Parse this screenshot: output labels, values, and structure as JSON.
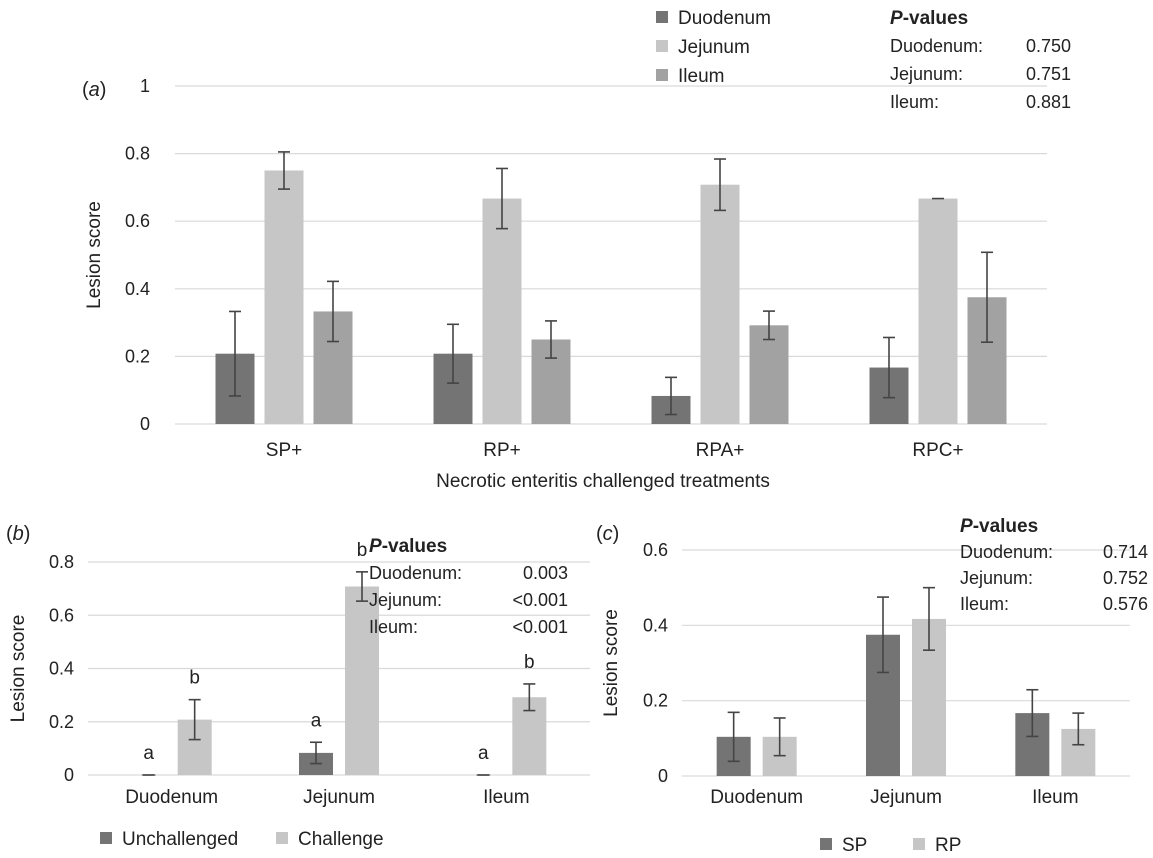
{
  "colors": {
    "dark": "#747474",
    "light": "#c6c6c6",
    "mid": "#a2a2a2"
  },
  "chart_data": [
    {
      "panel": "(a)",
      "panel_letter": "a",
      "type": "bar",
      "title": "",
      "xlabel": "Necrotic enteritis challenged treatments",
      "ylabel": "Lesion score",
      "ylim": [
        0,
        1
      ],
      "yticks": [
        "0",
        "0.2",
        "0.4",
        "0.6",
        "0.8",
        "1"
      ],
      "grid": true,
      "legend_position": "top",
      "categories": [
        "SP+",
        "RP+",
        "RPA+",
        "RPC+"
      ],
      "series": [
        {
          "name": "Duodenum",
          "color": "#747474",
          "values": [
            0.208,
            0.208,
            0.083,
            0.167
          ],
          "errors": [
            0.125,
            0.087,
            0.055,
            0.089
          ]
        },
        {
          "name": "Jejunum",
          "color": "#c6c6c6",
          "values": [
            0.75,
            0.667,
            0.708,
            0.667
          ],
          "errors": [
            0.055,
            0.089,
            0.076,
            0.0
          ]
        },
        {
          "name": "Ileum",
          "color": "#a2a2a2",
          "values": [
            0.333,
            0.25,
            0.292,
            0.375
          ],
          "errors": [
            0.089,
            0.055,
            0.042,
            0.133
          ]
        }
      ],
      "pvalues": {
        "title_bold": "P",
        "title_rest": "-values",
        "rows": [
          {
            "label": "Duodenum:",
            "value": "0.750"
          },
          {
            "label": "Jejunum:",
            "value": "0.751"
          },
          {
            "label": "Ileum:",
            "value": "0.881"
          }
        ]
      }
    },
    {
      "panel": "(b)",
      "panel_letter": "b",
      "type": "bar",
      "title": "",
      "xlabel": "",
      "ylabel": "Lesion score",
      "ylim": [
        0,
        0.8
      ],
      "yticks": [
        "0",
        "0.2",
        "0.4",
        "0.6",
        "0.8"
      ],
      "grid": true,
      "legend_position": "bottom",
      "categories": [
        "Duodenum",
        "Jejunum",
        "Ileum"
      ],
      "series": [
        {
          "name": "Unchallenged",
          "color": "#747474",
          "values": [
            0.0,
            0.083,
            0.0
          ],
          "errors": [
            0.0,
            0.04,
            0.0
          ],
          "labels": [
            "a",
            "a",
            "a"
          ]
        },
        {
          "name": "Challenge",
          "color": "#c6c6c6",
          "values": [
            0.208,
            0.708,
            0.292
          ],
          "errors": [
            0.075,
            0.055,
            0.05
          ],
          "labels": [
            "b",
            "b",
            "b"
          ]
        }
      ],
      "pvalues": {
        "title_bold": "P",
        "title_rest": "-values",
        "rows": [
          {
            "label": "Duodenum:",
            "value": "0.003"
          },
          {
            "label": "Jejunum:",
            "value": "<0.001"
          },
          {
            "label": "Ileum:",
            "value": "<0.001"
          }
        ]
      }
    },
    {
      "panel": "(c)",
      "panel_letter": "c",
      "type": "bar",
      "title": "",
      "xlabel": "",
      "ylabel": "Lesion score",
      "ylim": [
        0,
        0.6
      ],
      "yticks": [
        "0",
        "0.2",
        "0.4",
        "0.6"
      ],
      "grid": true,
      "legend_position": "bottom",
      "categories": [
        "Duodenum",
        "Jejunum",
        "Ileum"
      ],
      "series": [
        {
          "name": "SP",
          "color": "#747474",
          "values": [
            0.104,
            0.375,
            0.167
          ],
          "errors": [
            0.065,
            0.1,
            0.062
          ]
        },
        {
          "name": "RP",
          "color": "#c6c6c6",
          "values": [
            0.104,
            0.417,
            0.125
          ],
          "errors": [
            0.05,
            0.083,
            0.042
          ]
        }
      ],
      "pvalues": {
        "title_bold": "P",
        "title_rest": "-values",
        "rows": [
          {
            "label": "Duodenum:",
            "value": "0.714"
          },
          {
            "label": "Jejunum:",
            "value": "0.752"
          },
          {
            "label": "Ileum:",
            "value": "0.576"
          }
        ]
      }
    }
  ]
}
